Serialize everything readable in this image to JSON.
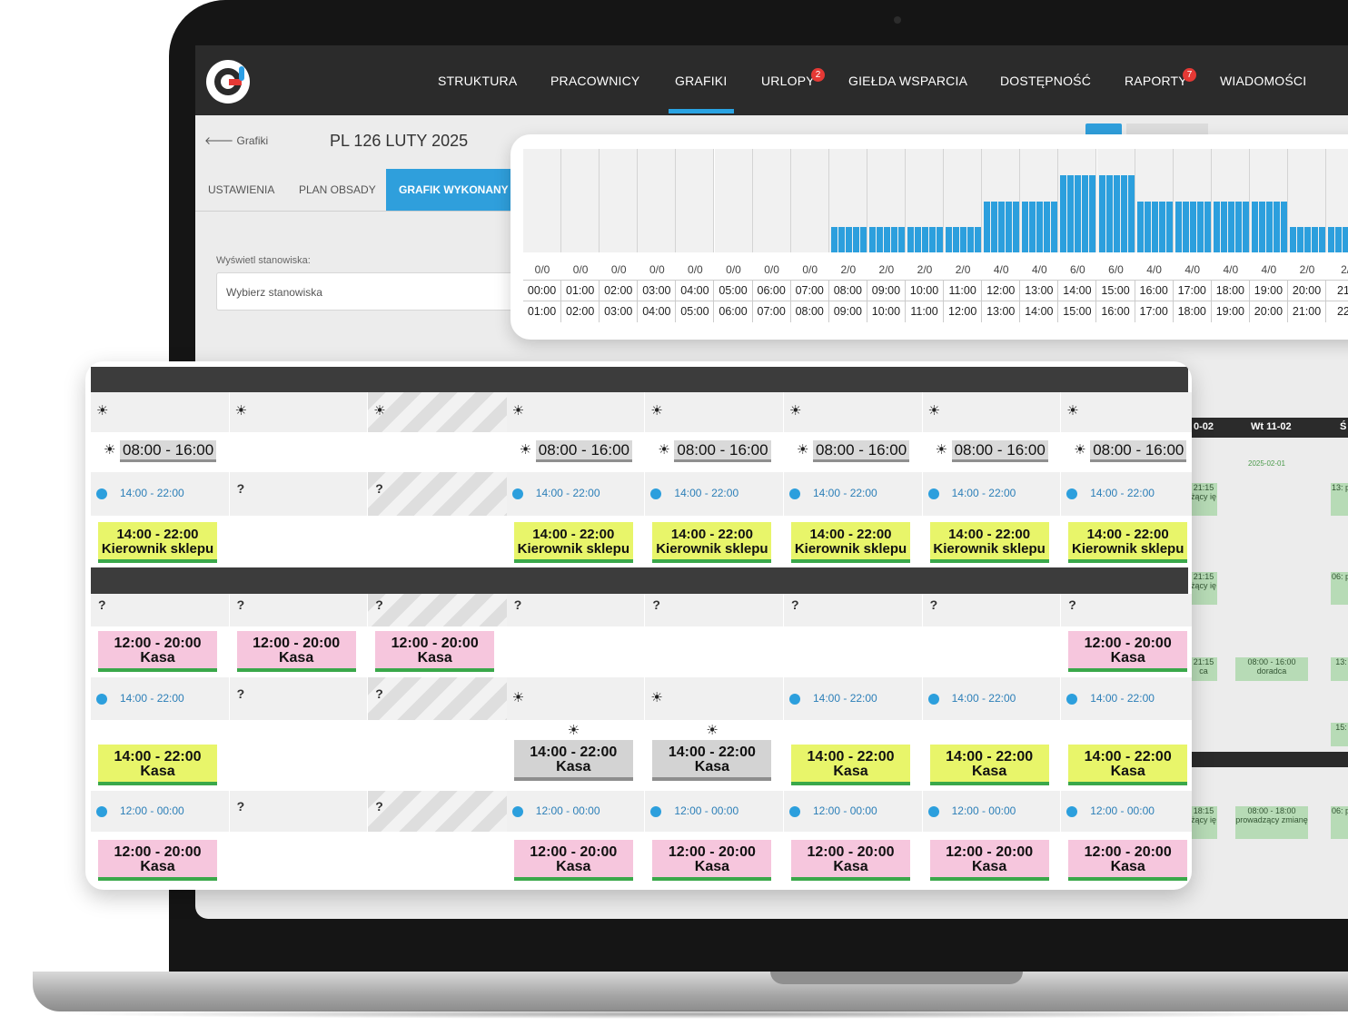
{
  "nav": {
    "items": [
      "STRUKTURA",
      "PRACOWNICY",
      "GRAFIKI",
      "URLOPY",
      "GIEŁDA WSPARCIA",
      "DOSTĘPNOŚĆ",
      "RAPORTY",
      "WIADOMOŚCI"
    ],
    "active": "GRAFIKI",
    "badges": {
      "urlopy": "2",
      "raporty": "7"
    },
    "accent_color": "#29a3e2"
  },
  "page": {
    "back_label": "Grafiki",
    "title": "PL 126 LUTY 2025",
    "tabs": [
      "USTAWIENIA",
      "PLAN OBSADY",
      "GRAFIK WYKONANY"
    ],
    "filter_label": "Wyświetl stanowiska:",
    "filter_placeholder": "Wybierz stanowiska"
  },
  "staffing_chart": {
    "ratios": [
      "0/0",
      "0/0",
      "0/0",
      "0/0",
      "0/0",
      "0/0",
      "0/0",
      "0/0",
      "2/0",
      "2/0",
      "2/0",
      "2/0",
      "4/0",
      "4/0",
      "6/0",
      "6/0",
      "4/0",
      "4/0",
      "4/0",
      "4/0",
      "2/0",
      "2/"
    ],
    "start_hours": [
      "00:00",
      "01:00",
      "02:00",
      "03:00",
      "04:00",
      "05:00",
      "06:00",
      "07:00",
      "08:00",
      "09:00",
      "10:00",
      "11:00",
      "12:00",
      "13:00",
      "14:00",
      "15:00",
      "16:00",
      "17:00",
      "18:00",
      "19:00",
      "20:00",
      "21:"
    ],
    "end_hours": [
      "01:00",
      "02:00",
      "03:00",
      "04:00",
      "05:00",
      "06:00",
      "07:00",
      "08:00",
      "09:00",
      "10:00",
      "11:00",
      "12:00",
      "13:00",
      "14:00",
      "15:00",
      "16:00",
      "17:00",
      "18:00",
      "19:00",
      "20:00",
      "21:00",
      "22:"
    ],
    "bar_color": "#2c9fdd"
  },
  "background": {
    "days": [
      "0-02",
      "Wt 11-02",
      "Ś"
    ],
    "date_tag": "2025-02-01",
    "cells": [
      "21:15 żący ię",
      "13: pro",
      "21:15 żący ię",
      "06: pro",
      "21:15 ca",
      "08:00 - 16:00 doradca",
      "13: c",
      "15: c",
      "18:15 żący ię",
      "08:00 - 18:00 prowadzący zmianę",
      "06: pro"
    ]
  },
  "schedule": {
    "sections": [
      {
        "rows": [
          {
            "type": "avail",
            "cells": [
              {
                "k": "sun"
              },
              {
                "k": "sun"
              },
              {
                "k": "sun",
                "stripe": true
              },
              {
                "k": "sun"
              },
              {
                "k": "sun"
              },
              {
                "k": "sun"
              },
              {
                "k": "sun"
              },
              {
                "k": "sun"
              }
            ]
          },
          {
            "type": "time",
            "cells": [
              "08:00 - 16:00",
              "",
              "",
              "08:00 - 16:00",
              "08:00 - 16:00",
              "08:00 - 16:00",
              "08:00 - 16:00",
              "08:00 - 16:00"
            ]
          },
          {
            "type": "avail",
            "cells": [
              {
                "k": "dot",
                "t": "14:00 - 22:00"
              },
              {
                "k": "q"
              },
              {
                "k": "q",
                "stripe": true
              },
              {
                "k": "dot",
                "t": "14:00 - 22:00"
              },
              {
                "k": "dot",
                "t": "14:00 - 22:00"
              },
              {
                "k": "dot",
                "t": "14:00 - 22:00"
              },
              {
                "k": "dot",
                "t": "14:00 - 22:00"
              },
              {
                "k": "dot",
                "t": "14:00 - 22:00"
              }
            ]
          },
          {
            "type": "shift",
            "cells": [
              {
                "t": "14:00 - 22:00",
                "r": "Kierownik sklepu",
                "c": "y"
              },
              null,
              null,
              {
                "t": "14:00 - 22:00",
                "r": "Kierownik sklepu",
                "c": "y"
              },
              {
                "t": "14:00 - 22:00",
                "r": "Kierownik sklepu",
                "c": "y"
              },
              {
                "t": "14:00 - 22:00",
                "r": "Kierownik sklepu",
                "c": "y"
              },
              {
                "t": "14:00 - 22:00",
                "r": "Kierownik sklepu",
                "c": "y"
              },
              {
                "t": "14:00 - 22:00",
                "r": "Kierownik sklepu",
                "c": "y"
              }
            ]
          }
        ]
      },
      {
        "rows": [
          {
            "type": "avail",
            "cells": [
              {
                "k": "q"
              },
              {
                "k": "q"
              },
              {
                "k": "q",
                "stripe": true
              },
              {
                "k": "q"
              },
              {
                "k": "q"
              },
              {
                "k": "q"
              },
              {
                "k": "q"
              },
              {
                "k": "q"
              }
            ]
          },
          {
            "type": "shift",
            "cells": [
              {
                "t": "12:00 - 20:00",
                "r": "Kasa",
                "c": "p"
              },
              {
                "t": "12:00 - 20:00",
                "r": "Kasa",
                "c": "p"
              },
              {
                "t": "12:00 - 20:00",
                "r": "Kasa",
                "c": "p"
              },
              null,
              null,
              null,
              null,
              {
                "t": "12:00 - 20:00",
                "r": "Kasa",
                "c": "p"
              }
            ]
          },
          {
            "type": "avail",
            "cells": [
              {
                "k": "dot",
                "t": "14:00 - 22:00"
              },
              {
                "k": "q"
              },
              {
                "k": "q",
                "stripe": true
              },
              {
                "k": "sun"
              },
              {
                "k": "sun"
              },
              {
                "k": "dot",
                "t": "14:00 - 22:00"
              },
              {
                "k": "dot",
                "t": "14:00 - 22:00"
              },
              {
                "k": "dot",
                "t": "14:00 - 22:00"
              }
            ]
          },
          {
            "type": "shift",
            "cells": [
              {
                "t": "14:00 - 22:00",
                "r": "Kasa",
                "c": "y"
              },
              null,
              null,
              {
                "t": "14:00 - 22:00",
                "r": "Kasa",
                "c": "gr",
                "sun": true
              },
              {
                "t": "14:00 - 22:00",
                "r": "Kasa",
                "c": "gr",
                "sun": true
              },
              {
                "t": "14:00 - 22:00",
                "r": "Kasa",
                "c": "y"
              },
              {
                "t": "14:00 - 22:00",
                "r": "Kasa",
                "c": "y"
              },
              {
                "t": "14:00 - 22:00",
                "r": "Kasa",
                "c": "y"
              }
            ]
          },
          {
            "type": "avail",
            "cells": [
              {
                "k": "dot",
                "t": "12:00 - 00:00"
              },
              {
                "k": "q"
              },
              {
                "k": "q",
                "stripe": true
              },
              {
                "k": "dot",
                "t": "12:00 - 00:00"
              },
              {
                "k": "dot",
                "t": "12:00 - 00:00"
              },
              {
                "k": "dot",
                "t": "12:00 - 00:00"
              },
              {
                "k": "dot",
                "t": "12:00 - 00:00"
              },
              {
                "k": "dot",
                "t": "12:00 - 00:00"
              }
            ]
          },
          {
            "type": "shift",
            "cells": [
              {
                "t": "12:00 - 20:00",
                "r": "Kasa",
                "c": "p"
              },
              null,
              null,
              {
                "t": "12:00 - 20:00",
                "r": "Kasa",
                "c": "p"
              },
              {
                "t": "12:00 - 20:00",
                "r": "Kasa",
                "c": "p"
              },
              {
                "t": "12:00 - 20:00",
                "r": "Kasa",
                "c": "p"
              },
              {
                "t": "12:00 - 20:00",
                "r": "Kasa",
                "c": "p"
              },
              {
                "t": "12:00 - 20:00",
                "r": "Kasa",
                "c": "p"
              }
            ]
          }
        ]
      }
    ],
    "colors": {
      "yellow": "#e8f56a",
      "pink": "#f6c6dd",
      "gray": "#d3d3d3",
      "accent_green": "#3aa84a",
      "dot_blue": "#2c9fdd"
    },
    "icons": {
      "sun": "sun-icon",
      "question": "question-icon",
      "dot": "availability-dot-icon"
    },
    "symbols": {
      "sun": "☀",
      "question": "?"
    }
  }
}
